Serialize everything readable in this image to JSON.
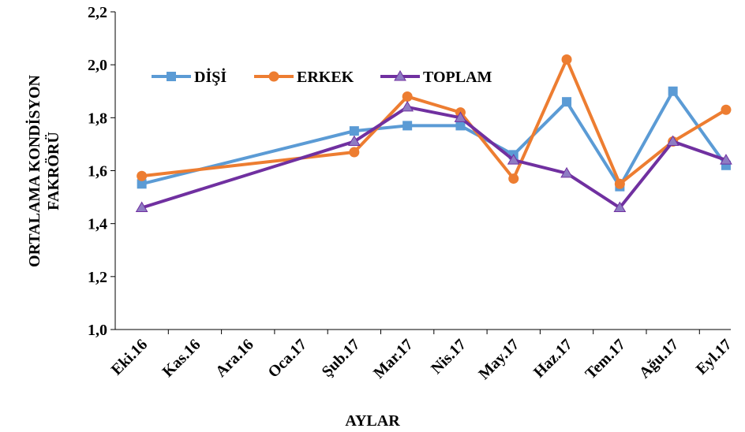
{
  "chart_data": {
    "type": "line",
    "x_label": "AYLAR",
    "y_label": [
      "ORTALAMA KONDİSYON",
      "FAKRÖRÜ"
    ],
    "categories": [
      "Eki.16",
      "Kas.16",
      "Ara.16",
      "Oca.17",
      "Şub.17",
      "Mar.17",
      "Nis.17",
      "May.17",
      "Haz.17",
      "Tem.17",
      "Ağu.17",
      "Eyl.17"
    ],
    "series": [
      {
        "name": "DİŞİ",
        "color": "#5b9bd5",
        "marker": "square",
        "values": [
          1.55,
          null,
          null,
          null,
          1.75,
          1.77,
          1.77,
          1.66,
          1.86,
          1.54,
          1.9,
          1.62
        ]
      },
      {
        "name": "ERKEK",
        "color": "#ed7d31",
        "marker": "circle",
        "values": [
          1.58,
          null,
          null,
          null,
          1.67,
          1.88,
          1.82,
          1.57,
          2.02,
          1.55,
          1.71,
          1.83
        ]
      },
      {
        "name": "TOPLAM",
        "color": "#7030a0",
        "marker": "triangle",
        "values": [
          1.46,
          null,
          null,
          null,
          1.71,
          1.84,
          1.8,
          1.64,
          1.59,
          1.46,
          1.71,
          1.64
        ]
      }
    ],
    "span_gaps": true,
    "ylim": [
      1.0,
      2.2
    ],
    "yticks": [
      {
        "value": 1.0,
        "label": "1,0"
      },
      {
        "value": 1.2,
        "label": "1,2"
      },
      {
        "value": 1.4,
        "label": "1,4"
      },
      {
        "value": 1.6,
        "label": "1,6"
      },
      {
        "value": 1.8,
        "label": "1,8"
      },
      {
        "value": 2.0,
        "label": "2,0"
      },
      {
        "value": 2.2,
        "label": "2,2"
      }
    ],
    "grid": false,
    "legend": "top-left"
  }
}
